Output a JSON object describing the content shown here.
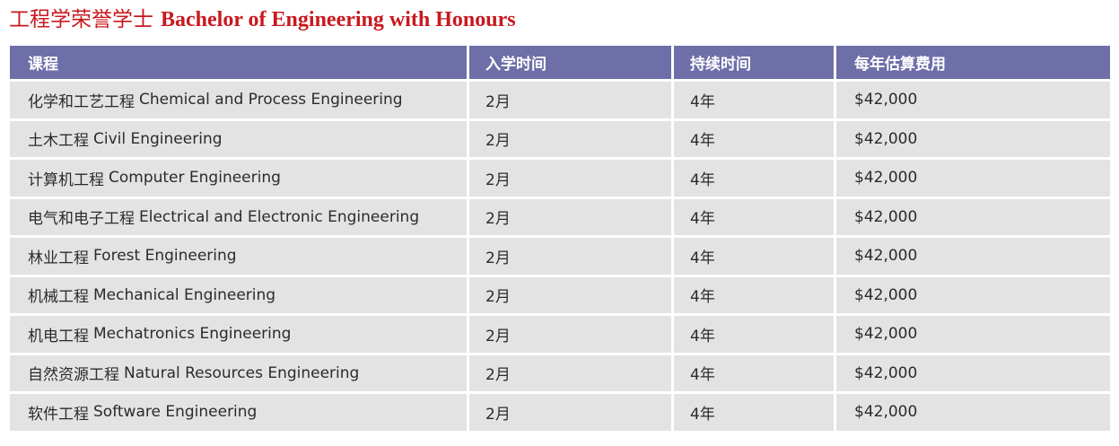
{
  "title": {
    "zh": "工程学荣誉学士",
    "en": "Bachelor of Engineering with Honours"
  },
  "table": {
    "headers": [
      "课程",
      "入学时间",
      "持续时间",
      "每年估算费用"
    ],
    "rows": [
      {
        "zh": "化学和工艺工程",
        "en": "Chemical and Process Engineering",
        "intake": "2月",
        "duration": "4年",
        "fee": "$42,000"
      },
      {
        "zh": "土木工程",
        "en": "Civil Engineering",
        "intake": "2月",
        "duration": "4年",
        "fee": "$42,000"
      },
      {
        "zh": "计算机工程",
        "en": "Computer Engineering",
        "intake": "2月",
        "duration": "4年",
        "fee": "$42,000"
      },
      {
        "zh": "电气和电子工程",
        "en": "Electrical and Electronic Engineering",
        "intake": "2月",
        "duration": "4年",
        "fee": "$42,000"
      },
      {
        "zh": "林业工程",
        "en": "Forest Engineering",
        "intake": "2月",
        "duration": "4年",
        "fee": "$42,000"
      },
      {
        "zh": "机械工程",
        "en": "Mechanical Engineering",
        "intake": "2月",
        "duration": "4年",
        "fee": "$42,000"
      },
      {
        "zh": "机电工程",
        "en": "Mechatronics Engineering",
        "intake": "2月",
        "duration": "4年",
        "fee": "$42,000"
      },
      {
        "zh": "自然资源工程",
        "en": "Natural Resources Engineering",
        "intake": "2月",
        "duration": "4年",
        "fee": "$42,000"
      },
      {
        "zh": "软件工程",
        "en": "Software Engineering",
        "intake": "2月",
        "duration": "4年",
        "fee": "$42,000"
      }
    ]
  }
}
